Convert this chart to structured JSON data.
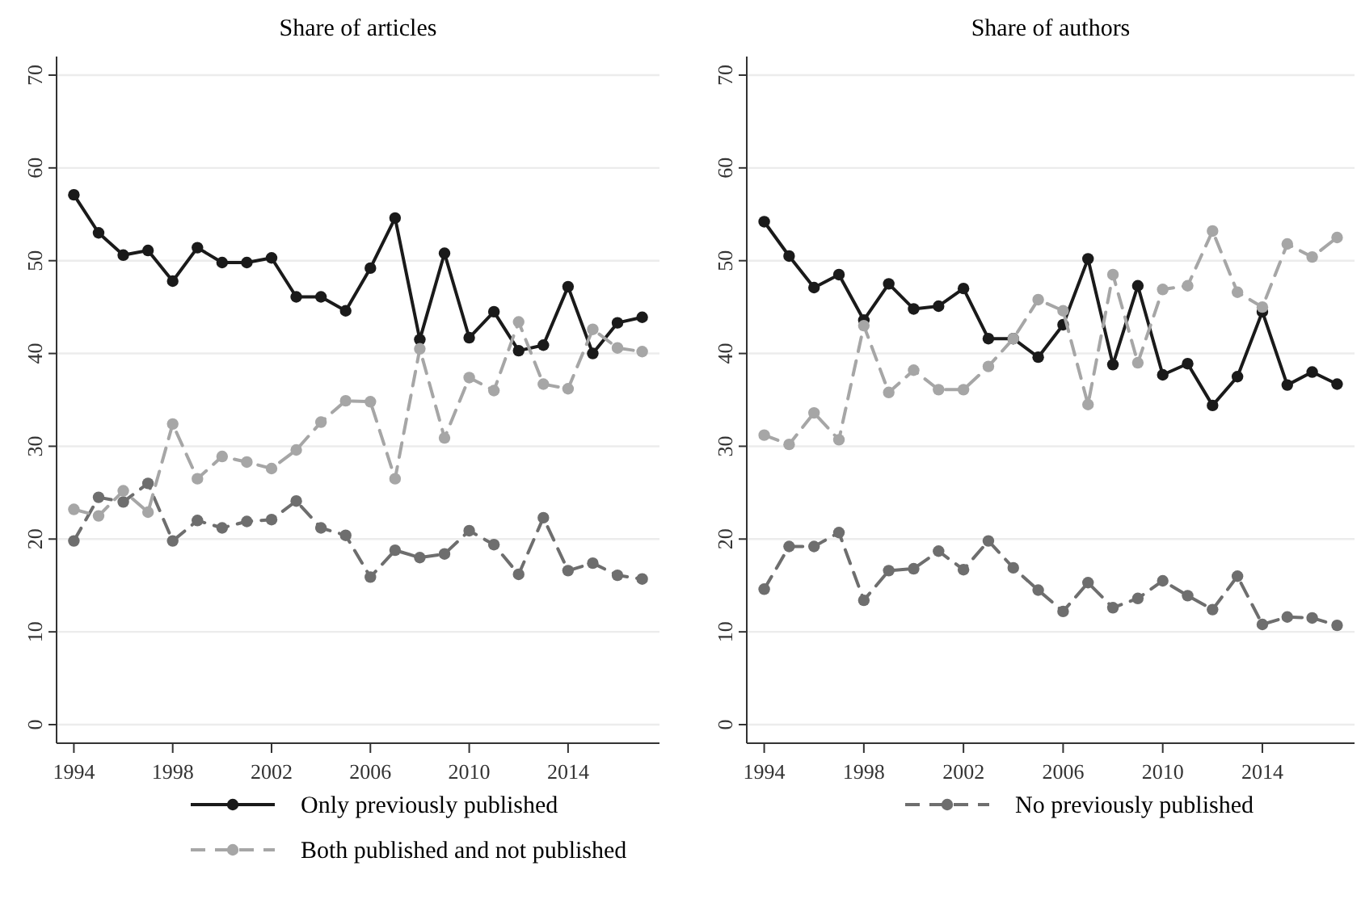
{
  "chart_data": [
    {
      "type": "line",
      "title": "Share of articles",
      "x": [
        1994,
        1995,
        1996,
        1997,
        1998,
        1999,
        2000,
        2001,
        2002,
        2003,
        2004,
        2005,
        2006,
        2007,
        2008,
        2009,
        2010,
        2011,
        2012,
        2013,
        2014,
        2015,
        2016,
        2017
      ],
      "xlim": [
        1993.3,
        2017.7
      ],
      "xticks": [
        1994,
        1998,
        2002,
        2006,
        2010,
        2014
      ],
      "ylim": [
        -2,
        72
      ],
      "yticks": [
        0,
        10,
        20,
        30,
        40,
        50,
        60,
        70
      ],
      "grid": "y",
      "marker": "circle",
      "legend": "bottom",
      "series": [
        {
          "name": "Only previously published",
          "color": "#1a1a1a",
          "line_style": "solid",
          "values": [
            57.1,
            53.0,
            50.6,
            51.1,
            47.8,
            51.4,
            49.8,
            49.8,
            50.3,
            46.1,
            46.1,
            44.6,
            49.2,
            54.6,
            41.5,
            50.8,
            41.7,
            44.5,
            40.3,
            40.9,
            47.2,
            40.0,
            43.3,
            43.9
          ]
        },
        {
          "name": "No previously published",
          "color": "#6e6e6e",
          "line_style": "dashed",
          "values": [
            19.8,
            24.5,
            24.0,
            26.0,
            19.8,
            22.0,
            21.2,
            21.9,
            22.1,
            24.1,
            21.2,
            20.4,
            15.9,
            18.8,
            18.0,
            18.4,
            20.9,
            19.4,
            16.2,
            22.3,
            16.6,
            17.4,
            16.1,
            15.7
          ]
        },
        {
          "name": "Both published and not published",
          "color": "#a6a6a6",
          "line_style": "dashed",
          "values": [
            23.2,
            22.5,
            25.2,
            22.9,
            32.4,
            26.5,
            28.9,
            28.3,
            27.6,
            29.6,
            32.6,
            34.9,
            34.8,
            26.5,
            40.5,
            30.9,
            37.4,
            36.0,
            43.4,
            36.7,
            36.2,
            42.6,
            40.6,
            40.2
          ]
        }
      ]
    },
    {
      "type": "line",
      "title": "Share of authors",
      "x": [
        1994,
        1995,
        1996,
        1997,
        1998,
        1999,
        2000,
        2001,
        2002,
        2003,
        2004,
        2005,
        2006,
        2007,
        2008,
        2009,
        2010,
        2011,
        2012,
        2013,
        2014,
        2015,
        2016,
        2017
      ],
      "xlim": [
        1993.3,
        2017.7
      ],
      "xticks": [
        1994,
        1998,
        2002,
        2006,
        2010,
        2014
      ],
      "ylim": [
        -2,
        72
      ],
      "yticks": [
        0,
        10,
        20,
        30,
        40,
        50,
        60,
        70
      ],
      "grid": "y",
      "marker": "circle",
      "series": [
        {
          "color": "#1a1a1a",
          "line_style": "solid",
          "values": [
            54.2,
            50.5,
            47.1,
            48.5,
            43.6,
            47.5,
            44.8,
            45.1,
            47.0,
            41.6,
            41.6,
            39.6,
            43.1,
            50.2,
            38.8,
            47.3,
            37.7,
            38.9,
            34.4,
            37.5,
            44.5,
            36.6,
            38.0,
            36.7
          ]
        },
        {
          "color": "#6e6e6e",
          "line_style": "dashed",
          "values": [
            14.6,
            19.2,
            19.2,
            20.7,
            13.4,
            16.6,
            16.8,
            18.7,
            16.7,
            19.8,
            16.9,
            14.5,
            12.2,
            15.3,
            12.6,
            13.6,
            15.5,
            13.9,
            12.4,
            16.0,
            10.8,
            11.6,
            11.5,
            10.7
          ]
        },
        {
          "color": "#a6a6a6",
          "line_style": "dashed",
          "values": [
            31.2,
            30.2,
            33.6,
            30.7,
            43.0,
            35.8,
            38.2,
            36.1,
            36.1,
            38.6,
            41.6,
            45.8,
            44.6,
            34.5,
            48.5,
            39.0,
            46.9,
            47.3,
            53.2,
            46.6,
            45.0,
            51.8,
            50.4,
            52.5
          ]
        }
      ]
    }
  ]
}
